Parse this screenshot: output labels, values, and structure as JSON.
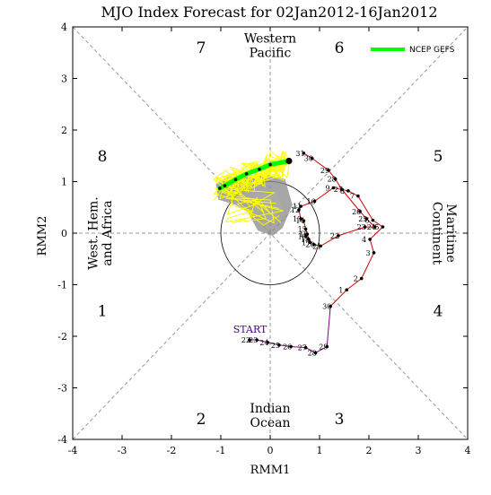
{
  "chart_data": {
    "type": "scatter",
    "title": "MJO Index Forecast for 02Jan2012-16Jan2012",
    "xlabel": "RMM1",
    "ylabel": "RMM2",
    "xlim": [
      -4,
      4
    ],
    "ylim": [
      -4,
      4
    ],
    "xticks": [
      "-4",
      "-3",
      "-2",
      "-1",
      "0",
      "1",
      "2",
      "3",
      "4"
    ],
    "yticks": [
      "-4",
      "-3",
      "-2",
      "-1",
      "0",
      "1",
      "2",
      "3",
      "4"
    ],
    "phases": [
      {
        "label": "1",
        "x": -3.4,
        "y": -1.5
      },
      {
        "label": "2",
        "x": -1.4,
        "y": -3.6
      },
      {
        "label": "3",
        "x": 1.4,
        "y": -3.6
      },
      {
        "label": "4",
        "x": 3.4,
        "y": -1.5
      },
      {
        "label": "5",
        "x": 3.4,
        "y": 1.5
      },
      {
        "label": "6",
        "x": 1.4,
        "y": 3.6
      },
      {
        "label": "7",
        "x": -1.4,
        "y": 3.6
      },
      {
        "label": "8",
        "x": -3.4,
        "y": 1.5
      }
    ],
    "regions": {
      "top": [
        "Western",
        "Pacific"
      ],
      "bottom": [
        "Indian",
        "Ocean"
      ],
      "left": [
        "West. Hem.",
        "and Africa"
      ],
      "right": [
        "Maritime",
        "Continent"
      ]
    },
    "legend": {
      "label": "NCEP GEFS",
      "color": "#00ff00",
      "position": "top-right"
    },
    "start_label": "START",
    "colors": {
      "observed_nov": "#800080",
      "observed_dec": "#cc0000",
      "ensemble": "#ffff00",
      "ensemble_mean": "#00ff00",
      "spread": "#888888"
    },
    "observed_nov": [
      {
        "label": "22",
        "x": -0.42,
        "y": -2.07
      },
      {
        "label": "23",
        "x": -0.27,
        "y": -2.07
      },
      {
        "label": "24",
        "x": -0.05,
        "y": -2.12
      },
      {
        "label": "25",
        "x": 0.18,
        "y": -2.17
      },
      {
        "label": "26",
        "x": 0.42,
        "y": -2.2
      },
      {
        "label": "27",
        "x": 0.72,
        "y": -2.22
      },
      {
        "label": "28",
        "x": 0.92,
        "y": -2.32
      },
      {
        "label": "29",
        "x": 1.15,
        "y": -2.2
      },
      {
        "label": "30",
        "x": 1.22,
        "y": -1.42
      }
    ],
    "observed_dec": [
      {
        "label": "1",
        "x": 1.55,
        "y": -1.1
      },
      {
        "label": "2",
        "x": 1.85,
        "y": -0.88
      },
      {
        "label": "3",
        "x": 2.1,
        "y": -0.38
      },
      {
        "label": "4",
        "x": 2.02,
        "y": -0.12
      },
      {
        "label": "5",
        "x": 2.28,
        "y": 0.12
      },
      {
        "label": "6",
        "x": 2.08,
        "y": 0.25
      },
      {
        "label": "7",
        "x": 1.78,
        "y": 0.72
      },
      {
        "label": "8",
        "x": 1.58,
        "y": 0.82
      },
      {
        "label": "9",
        "x": 1.28,
        "y": 0.88
      },
      {
        "label": "10",
        "x": 0.9,
        "y": 0.62
      },
      {
        "label": "11",
        "x": 0.62,
        "y": 0.52
      },
      {
        "label": "12",
        "x": 0.58,
        "y": 0.45
      },
      {
        "label": "13",
        "x": 0.62,
        "y": 0.28
      },
      {
        "label": "14",
        "x": 0.68,
        "y": 0.24
      },
      {
        "label": "15",
        "x": 0.72,
        "y": 0.08
      },
      {
        "label": "16",
        "x": 0.75,
        "y": -0.02
      },
      {
        "label": "17",
        "x": 0.8,
        "y": -0.18
      },
      {
        "label": "18",
        "x": 0.78,
        "y": -0.12
      },
      {
        "label": "19",
        "x": 0.72,
        "y": -0.06
      },
      {
        "label": "20",
        "x": 0.88,
        "y": -0.22
      },
      {
        "label": "21",
        "x": 1.02,
        "y": -0.25
      },
      {
        "label": "22",
        "x": 1.38,
        "y": -0.05
      },
      {
        "label": "23",
        "x": 1.92,
        "y": 0.12
      },
      {
        "label": "24",
        "x": 2.12,
        "y": 0.12
      },
      {
        "label": "25",
        "x": 1.95,
        "y": 0.28
      },
      {
        "label": "26",
        "x": 1.82,
        "y": 0.42
      },
      {
        "label": "27",
        "x": 1.45,
        "y": 0.85
      },
      {
        "label": "28",
        "x": 1.32,
        "y": 1.05
      },
      {
        "label": "29",
        "x": 1.18,
        "y": 1.22
      },
      {
        "label": "30",
        "x": 0.85,
        "y": 1.45
      },
      {
        "label": "31",
        "x": 0.68,
        "y": 1.55
      }
    ],
    "ensemble_mean": [
      {
        "x": 0.38,
        "y": 1.4
      },
      {
        "x": 0.0,
        "y": 1.33
      },
      {
        "x": -0.22,
        "y": 1.24
      },
      {
        "x": -0.48,
        "y": 1.15
      },
      {
        "x": -0.7,
        "y": 1.04
      },
      {
        "x": -0.92,
        "y": 0.92
      },
      {
        "x": -1.02,
        "y": 0.87
      }
    ]
  }
}
